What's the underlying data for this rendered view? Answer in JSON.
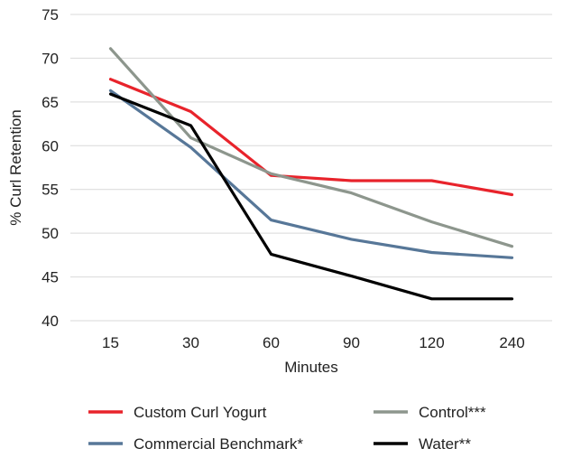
{
  "chart_data": {
    "type": "line",
    "categories": [
      "15",
      "30",
      "60",
      "90",
      "120",
      "240"
    ],
    "xlabel": "Minutes",
    "ylabel": "% Curl Retention",
    "ylim": [
      40,
      75
    ],
    "yticks": [
      40,
      45,
      50,
      55,
      60,
      65,
      70,
      75
    ],
    "grid": "horizontal",
    "legend_position": "bottom",
    "series": [
      {
        "name": "Custom Curl Yogurt",
        "color": "#e8232b",
        "values": [
          67.6,
          63.9,
          56.6,
          56.0,
          56.0,
          54.4
        ]
      },
      {
        "name": "Control***",
        "color": "#8d968d",
        "values": [
          71.1,
          60.9,
          56.8,
          54.6,
          51.3,
          48.5
        ]
      },
      {
        "name": "Commercial Benchmark*",
        "color": "#577798",
        "values": [
          66.3,
          59.8,
          51.5,
          49.3,
          47.8,
          47.2
        ]
      },
      {
        "name": "Water**",
        "color": "#000000",
        "values": [
          65.9,
          62.3,
          47.6,
          45.1,
          42.5,
          42.5
        ]
      }
    ]
  }
}
